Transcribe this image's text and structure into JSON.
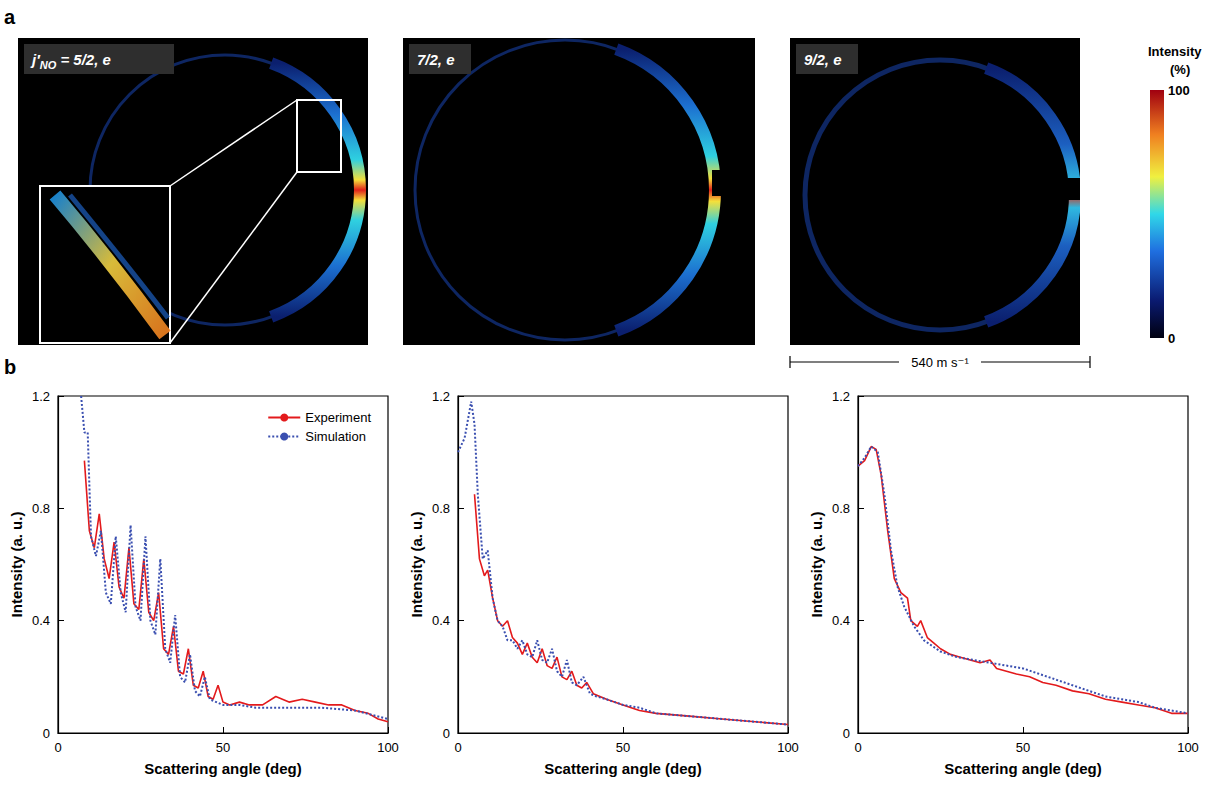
{
  "figure": {
    "panel_letters": [
      "a",
      "b"
    ],
    "images": [
      {
        "symbol": "j′",
        "subscript": "NO",
        "text": " = 5/2, e"
      },
      {
        "text": "7/2, e"
      },
      {
        "text": "9/2, e"
      }
    ],
    "colorbar": {
      "title": "Intensity (%)",
      "ticks": [
        0,
        100
      ]
    },
    "scale_bar": "540 m s⁻¹"
  },
  "chart_data": [
    {
      "type": "line",
      "xlabel": "Scattering angle (deg)",
      "ylabel": "Intensity (a. u.)",
      "xlim": [
        0,
        100
      ],
      "xticks": [
        0,
        50,
        100
      ],
      "ylim": [
        0,
        1.2
      ],
      "yticks": [
        0,
        0.4,
        0.8,
        1.2
      ],
      "grid": false,
      "legend": "upper right",
      "series": [
        {
          "name": "Experiment",
          "color": "#e31a1c",
          "line_style": "solid",
          "x": [
            8,
            9.5,
            11,
            12.5,
            14,
            15.5,
            17,
            18.5,
            20,
            21.5,
            23,
            24.5,
            26,
            27.5,
            29,
            30.5,
            32,
            33.5,
            35,
            36.5,
            38,
            39.5,
            41,
            42.5,
            44,
            45.5,
            47,
            48.5,
            50,
            52,
            55,
            58,
            62,
            66,
            70,
            74,
            78,
            82,
            86,
            90,
            94,
            97,
            100
          ],
          "values": [
            0.97,
            0.72,
            0.66,
            0.78,
            0.62,
            0.55,
            0.68,
            0.52,
            0.48,
            0.66,
            0.46,
            0.44,
            0.62,
            0.43,
            0.4,
            0.5,
            0.3,
            0.28,
            0.38,
            0.22,
            0.21,
            0.3,
            0.17,
            0.16,
            0.22,
            0.13,
            0.12,
            0.17,
            0.11,
            0.1,
            0.11,
            0.1,
            0.1,
            0.13,
            0.11,
            0.12,
            0.11,
            0.1,
            0.1,
            0.08,
            0.07,
            0.05,
            0.04
          ]
        },
        {
          "name": "Simulation",
          "color": "#3a4fb0",
          "line_style": "dotted",
          "x": [
            7,
            8,
            9,
            10,
            11.5,
            13,
            14.5,
            16,
            17.5,
            19,
            20.5,
            22,
            23.5,
            25,
            26.5,
            28,
            29.5,
            31,
            32.5,
            34,
            35.5,
            37,
            38.5,
            40,
            41.5,
            43,
            44.5,
            46,
            48,
            50,
            55,
            60,
            70,
            80,
            90,
            100
          ],
          "values": [
            1.2,
            1.07,
            1.07,
            0.7,
            0.63,
            0.72,
            0.5,
            0.46,
            0.7,
            0.5,
            0.43,
            0.74,
            0.45,
            0.4,
            0.7,
            0.4,
            0.35,
            0.62,
            0.3,
            0.25,
            0.42,
            0.2,
            0.18,
            0.28,
            0.15,
            0.13,
            0.2,
            0.12,
            0.11,
            0.1,
            0.1,
            0.09,
            0.09,
            0.09,
            0.08,
            0.05
          ]
        }
      ]
    },
    {
      "type": "line",
      "xlabel": "Scattering angle (deg)",
      "ylabel": "Intensity (a. u.)",
      "xlim": [
        0,
        100
      ],
      "xticks": [
        0,
        50,
        100
      ],
      "ylim": [
        0,
        1.2
      ],
      "yticks": [
        0,
        0.4,
        0.8,
        1.2
      ],
      "grid": false,
      "series": [
        {
          "name": "Experiment",
          "color": "#e31a1c",
          "line_style": "solid",
          "x": [
            5,
            6.5,
            8,
            9,
            10.5,
            12,
            13.5,
            15,
            16.5,
            18,
            19.5,
            21,
            22.5,
            24,
            25.5,
            27,
            28.5,
            30,
            31.5,
            33,
            34.5,
            36,
            37.5,
            39,
            41,
            43,
            45,
            50,
            55,
            60,
            70,
            80,
            90,
            100
          ],
          "values": [
            0.85,
            0.62,
            0.56,
            0.58,
            0.48,
            0.4,
            0.38,
            0.4,
            0.34,
            0.32,
            0.28,
            0.32,
            0.27,
            0.25,
            0.3,
            0.24,
            0.23,
            0.27,
            0.2,
            0.19,
            0.22,
            0.17,
            0.16,
            0.18,
            0.14,
            0.13,
            0.12,
            0.1,
            0.08,
            0.07,
            0.06,
            0.05,
            0.04,
            0.03
          ]
        },
        {
          "name": "Simulation",
          "color": "#3a4fb0",
          "line_style": "dotted",
          "x": [
            0,
            2,
            4,
            5,
            6,
            7.5,
            9,
            10.5,
            12,
            13.5,
            15,
            16.5,
            18,
            19.5,
            21,
            22.5,
            24,
            25.5,
            27,
            28.5,
            30,
            31.5,
            33,
            34.5,
            36,
            38,
            40,
            42,
            45,
            50,
            55,
            60,
            70,
            80,
            90,
            100
          ],
          "values": [
            1.0,
            1.05,
            1.18,
            1.1,
            0.85,
            0.62,
            0.65,
            0.48,
            0.4,
            0.38,
            0.33,
            0.33,
            0.3,
            0.33,
            0.28,
            0.27,
            0.33,
            0.26,
            0.25,
            0.3,
            0.22,
            0.2,
            0.26,
            0.18,
            0.17,
            0.2,
            0.14,
            0.13,
            0.12,
            0.1,
            0.09,
            0.07,
            0.06,
            0.05,
            0.04,
            0.03
          ]
        }
      ]
    },
    {
      "type": "line",
      "xlabel": "Scattering angle (deg)",
      "ylabel": "Intensity (a. u.)",
      "xlim": [
        0,
        100
      ],
      "xticks": [
        0,
        50,
        100
      ],
      "ylim": [
        0,
        1.2
      ],
      "yticks": [
        0,
        0.4,
        0.8,
        1.2
      ],
      "grid": false,
      "series": [
        {
          "name": "Experiment",
          "color": "#e31a1c",
          "line_style": "solid",
          "x": [
            0,
            2,
            4,
            5.5,
            7,
            9,
            11,
            13,
            15,
            16,
            18,
            19,
            21,
            23,
            25,
            28,
            31,
            34,
            37,
            40,
            42,
            45,
            48,
            52,
            56,
            60,
            65,
            70,
            75,
            80,
            85,
            90,
            95,
            100
          ],
          "values": [
            0.95,
            0.97,
            1.02,
            1.01,
            0.92,
            0.72,
            0.55,
            0.5,
            0.48,
            0.4,
            0.38,
            0.4,
            0.34,
            0.32,
            0.3,
            0.28,
            0.27,
            0.26,
            0.25,
            0.26,
            0.23,
            0.22,
            0.21,
            0.2,
            0.18,
            0.17,
            0.15,
            0.14,
            0.12,
            0.11,
            0.1,
            0.09,
            0.07,
            0.07
          ]
        },
        {
          "name": "Simulation",
          "color": "#3a4fb0",
          "line_style": "dotted",
          "x": [
            0,
            2,
            4,
            6,
            8,
            10,
            12,
            14,
            17,
            20,
            25,
            30,
            35,
            40,
            45,
            50,
            55,
            60,
            65,
            70,
            75,
            80,
            85,
            90,
            95,
            100
          ],
          "values": [
            0.95,
            0.98,
            1.02,
            1.0,
            0.85,
            0.65,
            0.52,
            0.45,
            0.38,
            0.33,
            0.29,
            0.27,
            0.26,
            0.25,
            0.24,
            0.23,
            0.21,
            0.19,
            0.17,
            0.15,
            0.13,
            0.12,
            0.11,
            0.09,
            0.08,
            0.07
          ]
        }
      ]
    }
  ]
}
